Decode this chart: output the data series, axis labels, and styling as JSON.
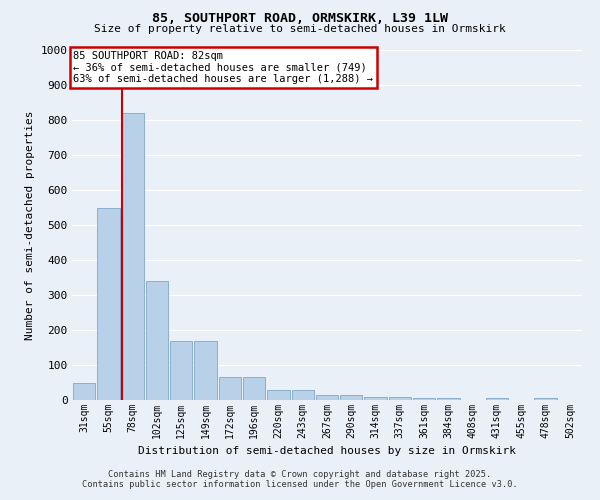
{
  "title1": "85, SOUTHPORT ROAD, ORMSKIRK, L39 1LW",
  "title2": "Size of property relative to semi-detached houses in Ormskirk",
  "xlabel": "Distribution of semi-detached houses by size in Ormskirk",
  "ylabel": "Number of semi-detached properties",
  "categories": [
    "31sqm",
    "55sqm",
    "78sqm",
    "102sqm",
    "125sqm",
    "149sqm",
    "172sqm",
    "196sqm",
    "220sqm",
    "243sqm",
    "267sqm",
    "290sqm",
    "314sqm",
    "337sqm",
    "361sqm",
    "384sqm",
    "408sqm",
    "431sqm",
    "455sqm",
    "478sqm",
    "502sqm"
  ],
  "values": [
    50,
    550,
    820,
    340,
    170,
    170,
    65,
    65,
    30,
    30,
    15,
    15,
    10,
    10,
    5,
    5,
    0,
    5,
    0,
    5,
    0
  ],
  "bar_color": "#b8d0e8",
  "bar_edge_color": "#8ab0d0",
  "highlight_bar_index": 2,
  "highlight_line_color": "#cc0000",
  "box_color": "#cc0000",
  "property_label": "85 SOUTHPORT ROAD: 82sqm",
  "smaller_pct": 36,
  "smaller_count": 749,
  "larger_pct": 63,
  "larger_count": 1288,
  "ylim": [
    0,
    1000
  ],
  "yticks": [
    0,
    100,
    200,
    300,
    400,
    500,
    600,
    700,
    800,
    900,
    1000
  ],
  "bg_color": "#eaf0f8",
  "plot_bg_color": "#eaf0f8",
  "grid_color": "#ffffff",
  "footer1": "Contains HM Land Registry data © Crown copyright and database right 2025.",
  "footer2": "Contains public sector information licensed under the Open Government Licence v3.0."
}
